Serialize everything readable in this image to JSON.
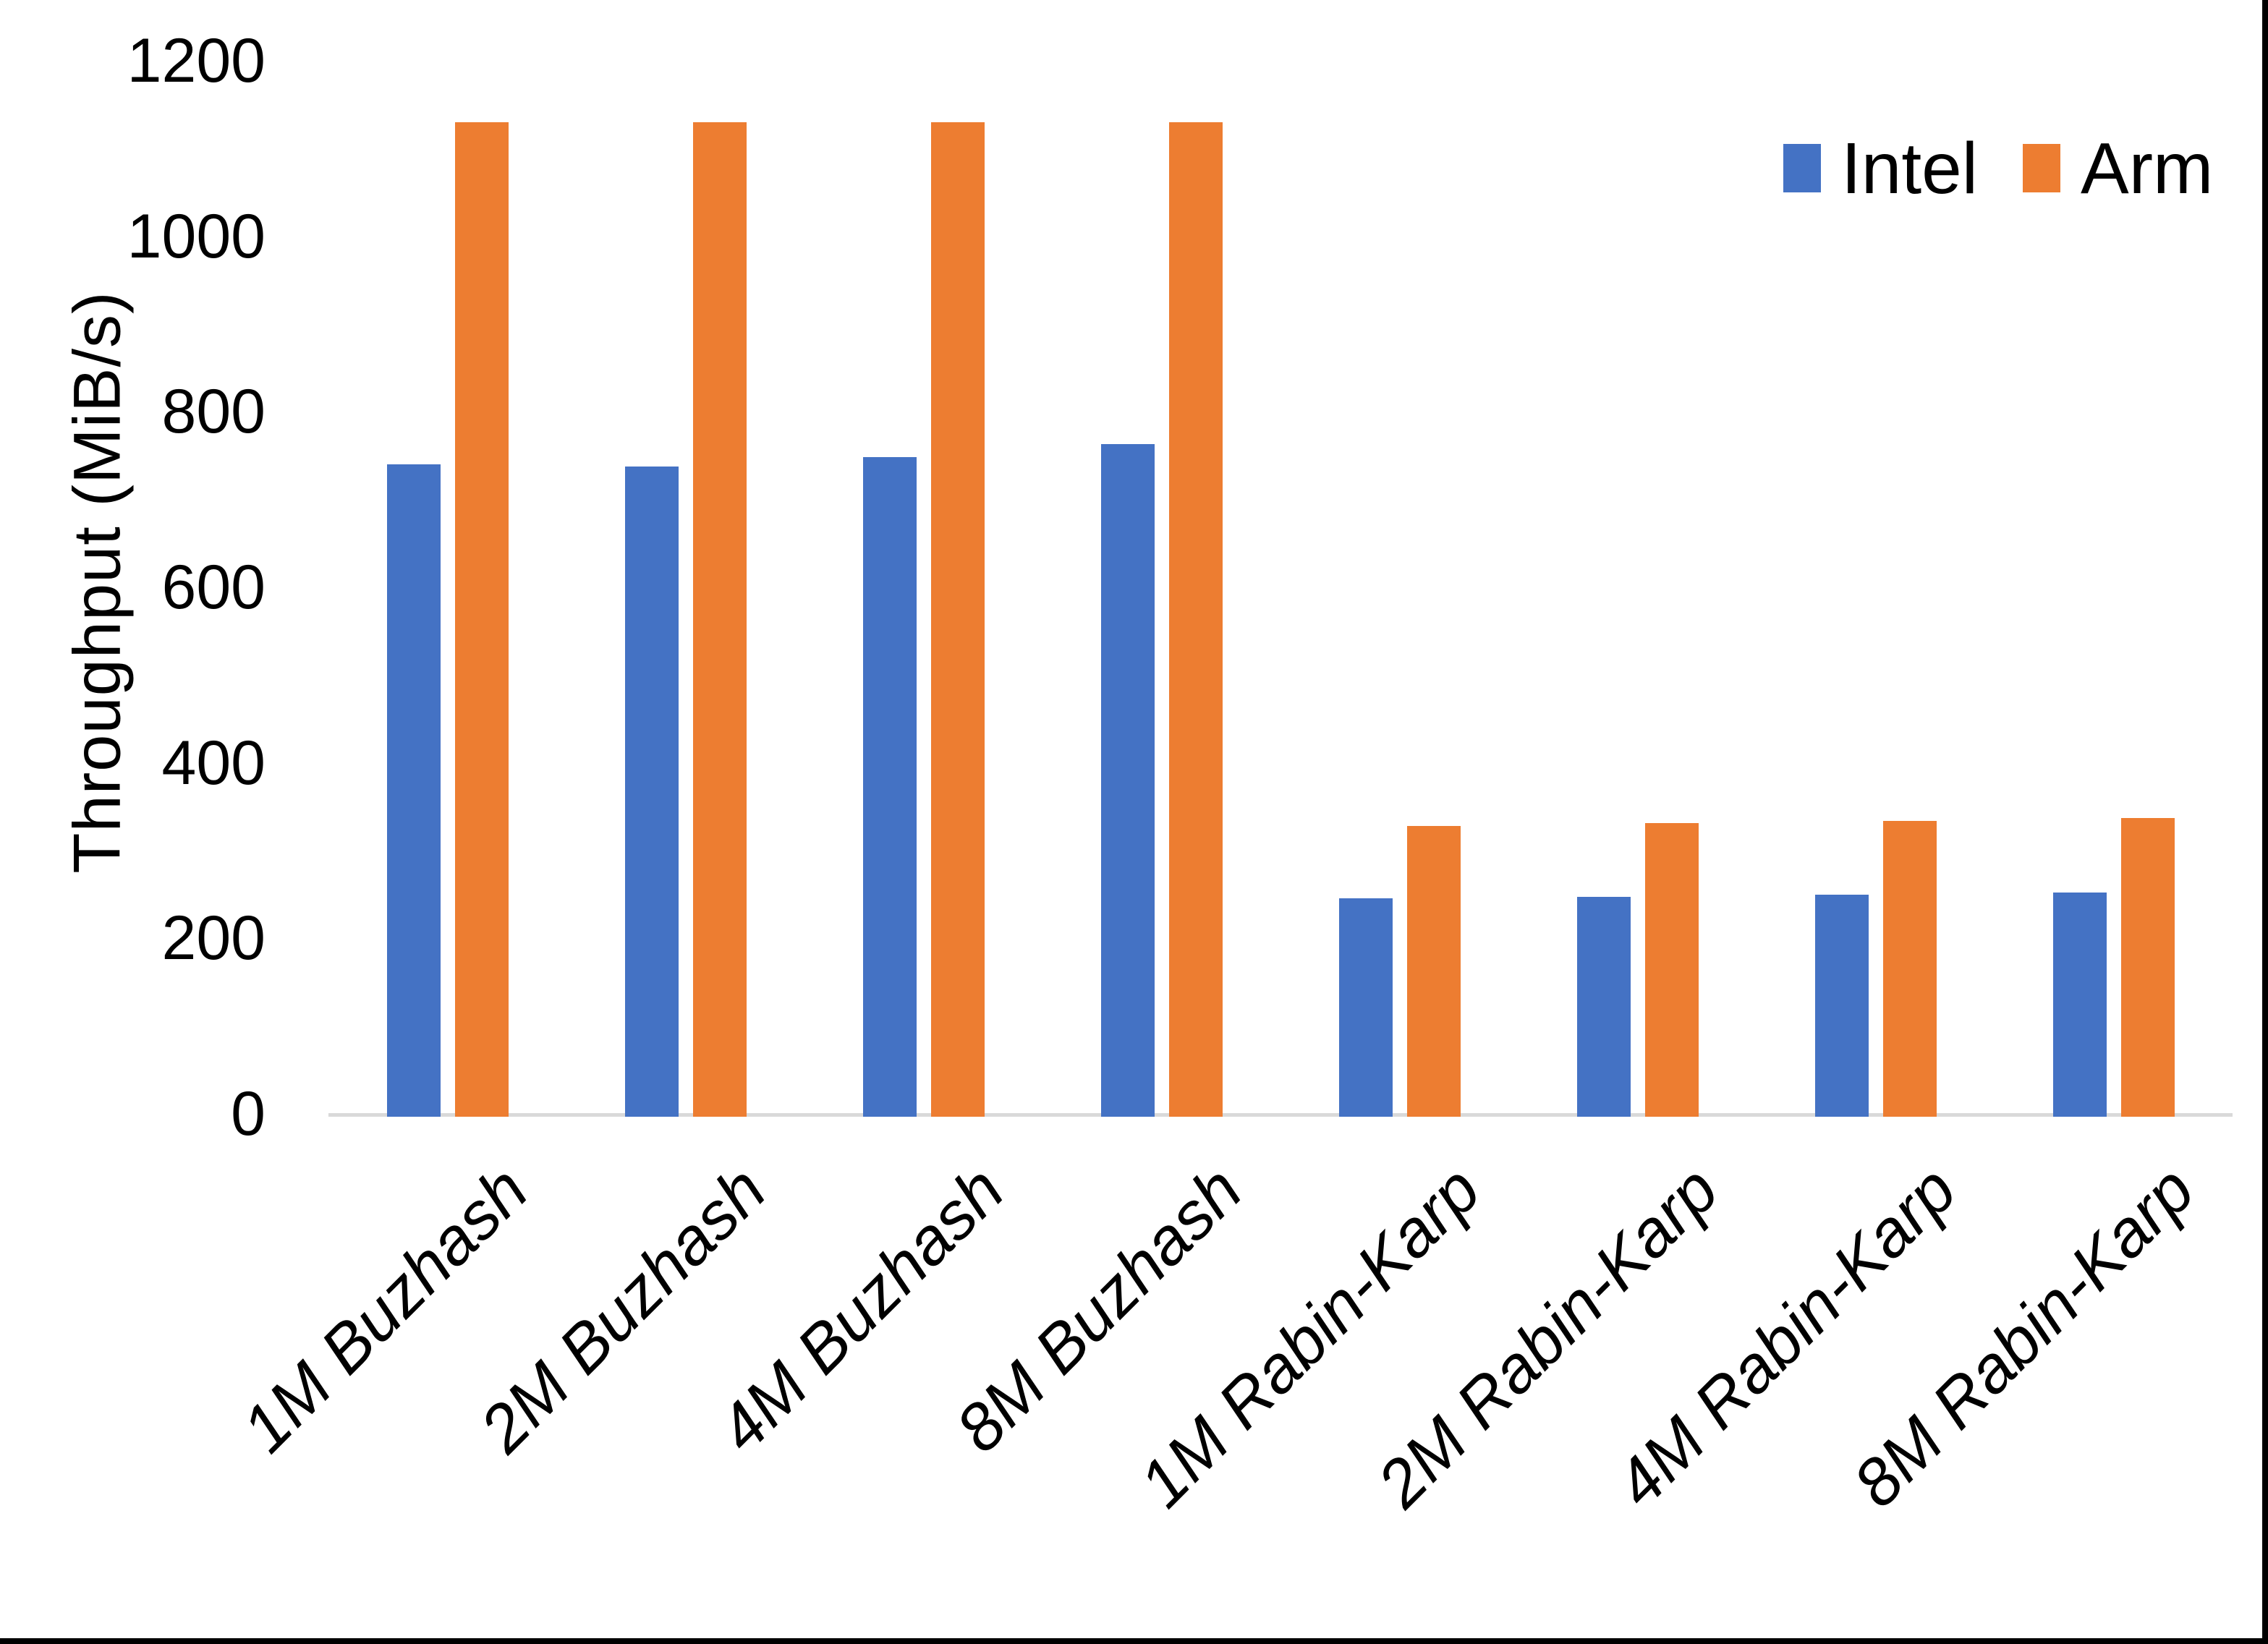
{
  "chart_data": {
    "type": "bar",
    "title": "",
    "ylabel": "Throughput (MiB/s)",
    "xlabel": "",
    "ylim": [
      0,
      1200
    ],
    "yticks": [
      0,
      200,
      400,
      600,
      800,
      1000,
      1200
    ],
    "grid": false,
    "legend_position": "top-right",
    "categories": [
      "1M Buzhash",
      "2M Buzhash",
      "4M Buzhash",
      "8M Buzhash",
      "1M Rabin-Karp",
      "2M Rabin-Karp",
      "4M Rabin-Karp",
      "8M Rabin-Karp"
    ],
    "series": [
      {
        "name": "Intel",
        "color": "#4472C4",
        "values": [
          740,
          738,
          748,
          763,
          246,
          247,
          250,
          252
        ]
      },
      {
        "name": "Arm",
        "color": "#ED7D31",
        "values": [
          1130,
          1130,
          1130,
          1130,
          328,
          331,
          334,
          337
        ]
      }
    ]
  },
  "legend": {
    "items": [
      {
        "label": "Intel",
        "color": "#4472C4"
      },
      {
        "label": "Arm",
        "color": "#ED7D31"
      }
    ]
  },
  "axis": {
    "y_title": "Throughput (MiB/s)",
    "y_tick_labels": [
      "0",
      "200",
      "400",
      "600",
      "800",
      "1000",
      "1200"
    ]
  },
  "colors": {
    "background": "#FFFFFF",
    "text": "#000000",
    "axis_line": "#D9D9D9",
    "intel_bar": "#4472C4",
    "arm_bar": "#ED7D31",
    "screen_edge": "#000000"
  }
}
